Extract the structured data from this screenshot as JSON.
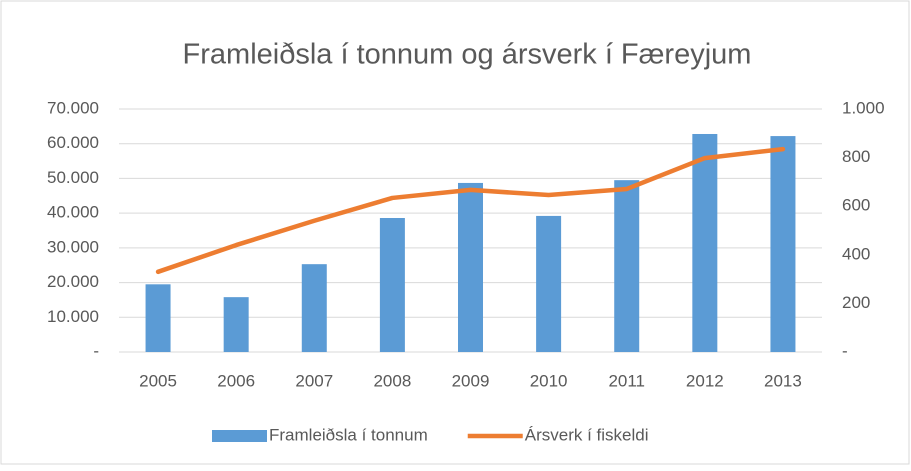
{
  "chart_data": {
    "type": "bar_line",
    "title": "Framleiðsla í tonnum og ársverk í Færeyjum",
    "categories": [
      "2005",
      "2006",
      "2007",
      "2008",
      "2009",
      "2010",
      "2011",
      "2012",
      "2013"
    ],
    "series": [
      {
        "name": "Framleiðsla í tonnum",
        "type": "bar",
        "color": "#5b9bd5",
        "axis": "y",
        "values": [
          19500,
          15800,
          25300,
          38600,
          48700,
          39200,
          49500,
          62800,
          62200
        ]
      },
      {
        "name": "Ársverk í fiskeldi",
        "type": "line",
        "color": "#ed7d31",
        "axis": "y2",
        "values": [
          330,
          440,
          540,
          634,
          667,
          646,
          671,
          798,
          835
        ]
      }
    ],
    "ylim": [
      0,
      70000
    ],
    "yticks": [
      {
        "value": 0,
        "label": "-"
      },
      {
        "value": 10000,
        "label": "10.000"
      },
      {
        "value": 20000,
        "label": "20.000"
      },
      {
        "value": 30000,
        "label": "30.000"
      },
      {
        "value": 40000,
        "label": "40.000"
      },
      {
        "value": 50000,
        "label": "50.000"
      },
      {
        "value": 60000,
        "label": "60.000"
      },
      {
        "value": 70000,
        "label": "70.000"
      }
    ],
    "y2lim": [
      0,
      1000
    ],
    "y2ticks": [
      {
        "value": 0,
        "label": "-"
      },
      200,
      400,
      600,
      800,
      {
        "value": 1000,
        "label": "1.000"
      }
    ],
    "grid": true,
    "legend": "bottom"
  }
}
